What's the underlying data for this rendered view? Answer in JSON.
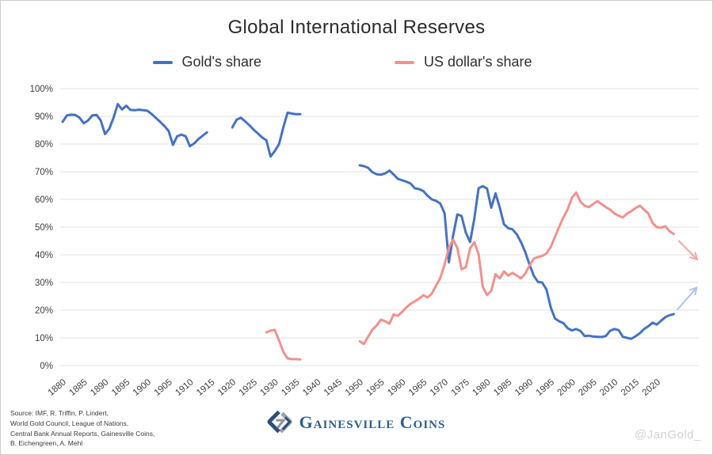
{
  "title": "Global International Reserves",
  "legend": [
    {
      "label": "Gold's share",
      "color": "#4472C4"
    },
    {
      "label": "US dollar's share",
      "color": "#F2908C"
    }
  ],
  "footer": {
    "source_lines": [
      "Source: IMF, R. Triffin, P. Lindert,",
      "World Gold Council, League of Nations,",
      "Central Bank Annual Reports, Gainesville Coins,",
      "B. Eichengreen, A. Mehl"
    ],
    "brand": "Gainesville Coins",
    "watermark": "@JanGold_"
  },
  "chart_data": {
    "type": "line",
    "title": "Global International Reserves",
    "xlabel": "",
    "ylabel": "",
    "xlim": [
      1880,
      2029.5
    ],
    "ylim": [
      0,
      100
    ],
    "grid": true,
    "legend_position": "top",
    "x_ticks": [
      1880,
      1885,
      1890,
      1895,
      1900,
      1905,
      1910,
      1915,
      1920,
      1925,
      1930,
      1935,
      1940,
      1945,
      1950,
      1955,
      1960,
      1965,
      1970,
      1975,
      1980,
      1985,
      1990,
      1995,
      2000,
      2005,
      2010,
      2015,
      2020
    ],
    "y_ticks": [
      0,
      10,
      20,
      30,
      40,
      50,
      60,
      70,
      80,
      90,
      100
    ],
    "y_tick_suffix": "%",
    "grid_color": "#e2e2e2",
    "series": [
      {
        "name": "Gold's share",
        "color": "#4472C4",
        "segments": [
          [
            [
              1880,
              88
            ],
            [
              1881,
              90.3
            ],
            [
              1882,
              90.6
            ],
            [
              1883,
              90.5
            ],
            [
              1884,
              89.5
            ],
            [
              1885,
              87.5
            ],
            [
              1886,
              88.5
            ],
            [
              1887,
              90.3
            ],
            [
              1888,
              90.5
            ],
            [
              1889,
              88.5
            ],
            [
              1890,
              83.6
            ],
            [
              1891,
              85.5
            ],
            [
              1892,
              89.5
            ],
            [
              1893,
              94.4
            ],
            [
              1894,
              92.5
            ],
            [
              1895,
              93.8
            ],
            [
              1896,
              92.3
            ],
            [
              1897,
              92.2
            ],
            [
              1898,
              92.4
            ],
            [
              1899,
              92.2
            ],
            [
              1900,
              92
            ],
            [
              1901,
              90.8
            ],
            [
              1902,
              89.4
            ],
            [
              1903,
              88
            ],
            [
              1904,
              86.5
            ],
            [
              1905,
              84.7
            ],
            [
              1906,
              79.7
            ],
            [
              1907,
              82.8
            ],
            [
              1908,
              83.4
            ],
            [
              1909,
              82.8
            ],
            [
              1910,
              79.2
            ],
            [
              1911,
              80.2
            ],
            [
              1912,
              81.8
            ],
            [
              1913,
              83
            ],
            [
              1914,
              84.2
            ]
          ],
          [
            [
              1920,
              86
            ],
            [
              1921,
              88.8
            ],
            [
              1922,
              89.5
            ],
            [
              1923,
              88.2
            ],
            [
              1924,
              86.8
            ],
            [
              1925,
              85.2
            ],
            [
              1926,
              83.8
            ],
            [
              1927,
              82.4
            ],
            [
              1928,
              81.4
            ],
            [
              1929,
              75.5
            ],
            [
              1930,
              77.5
            ],
            [
              1931,
              80
            ],
            [
              1932,
              86
            ],
            [
              1933,
              91.3
            ],
            [
              1934,
              91
            ],
            [
              1935,
              90.8
            ],
            [
              1936,
              90.8
            ]
          ],
          [
            [
              1950,
              72.3
            ],
            [
              1951,
              72
            ],
            [
              1952,
              71.4
            ],
            [
              1953,
              69.8
            ],
            [
              1954,
              69.1
            ],
            [
              1955,
              68.9
            ],
            [
              1956,
              69.4
            ],
            [
              1957,
              70.4
            ],
            [
              1958,
              69
            ],
            [
              1959,
              67.4
            ],
            [
              1960,
              66.9
            ],
            [
              1961,
              66.4
            ],
            [
              1962,
              65.7
            ],
            [
              1963,
              64
            ],
            [
              1964,
              63.7
            ],
            [
              1965,
              63
            ],
            [
              1966,
              61.3
            ],
            [
              1967,
              60
            ],
            [
              1968,
              59.5
            ],
            [
              1969,
              58.5
            ],
            [
              1970,
              55
            ],
            [
              1971,
              37.3
            ],
            [
              1972,
              46.9
            ],
            [
              1973,
              54.6
            ],
            [
              1974,
              54
            ],
            [
              1975,
              48
            ],
            [
              1976,
              44.6
            ],
            [
              1977,
              53
            ],
            [
              1978,
              64
            ],
            [
              1979,
              64.8
            ],
            [
              1980,
              63.9
            ],
            [
              1981,
              57
            ],
            [
              1982,
              62.2
            ],
            [
              1983,
              57
            ],
            [
              1984,
              51
            ],
            [
              1985,
              49.6
            ],
            [
              1986,
              49.2
            ],
            [
              1987,
              47.4
            ],
            [
              1988,
              44.6
            ],
            [
              1989,
              41
            ],
            [
              1990,
              36.5
            ],
            [
              1991,
              32.5
            ],
            [
              1992,
              30.2
            ],
            [
              1993,
              30
            ],
            [
              1994,
              27.5
            ],
            [
              1995,
              21
            ],
            [
              1996,
              17
            ],
            [
              1997,
              16
            ],
            [
              1998,
              15.3
            ],
            [
              1999,
              13.5
            ],
            [
              2000,
              12.7
            ],
            [
              2001,
              13.2
            ],
            [
              2002,
              12.5
            ],
            [
              2003,
              10.7
            ],
            [
              2004,
              10.8
            ],
            [
              2005,
              10.5
            ],
            [
              2006,
              10.4
            ],
            [
              2007,
              10.3
            ],
            [
              2008,
              10.7
            ],
            [
              2009,
              12.6
            ],
            [
              2010,
              13.2
            ],
            [
              2011,
              12.8
            ],
            [
              2012,
              10.4
            ],
            [
              2013,
              10
            ],
            [
              2014,
              9.7
            ],
            [
              2015,
              10.6
            ],
            [
              2016,
              11.7
            ],
            [
              2017,
              13.2
            ],
            [
              2018,
              14.2
            ],
            [
              2019,
              15.5
            ],
            [
              2020,
              14.8
            ],
            [
              2021,
              16.2
            ],
            [
              2022,
              17.5
            ],
            [
              2023,
              18.2
            ],
            [
              2024,
              18.6
            ]
          ]
        ]
      },
      {
        "name": "US dollar's share",
        "color": "#F2908C",
        "segments": [
          [
            [
              1928,
              12
            ],
            [
              1929,
              12.6
            ],
            [
              1930,
              12.9
            ],
            [
              1931,
              9
            ],
            [
              1932,
              5
            ],
            [
              1933,
              2.6
            ],
            [
              1934,
              2.3
            ],
            [
              1935,
              2.3
            ],
            [
              1936,
              2.2
            ]
          ],
          [
            [
              1950,
              8.8
            ],
            [
              1951,
              7.8
            ],
            [
              1952,
              10.5
            ],
            [
              1953,
              13
            ],
            [
              1954,
              14.5
            ],
            [
              1955,
              16.6
            ],
            [
              1956,
              16
            ],
            [
              1957,
              15.1
            ],
            [
              1958,
              18.5
            ],
            [
              1959,
              18
            ],
            [
              1960,
              19.4
            ],
            [
              1961,
              21
            ],
            [
              1962,
              22.3
            ],
            [
              1963,
              23.2
            ],
            [
              1964,
              24.2
            ],
            [
              1965,
              25.4
            ],
            [
              1966,
              24.6
            ],
            [
              1967,
              26
            ],
            [
              1968,
              28.9
            ],
            [
              1969,
              31.7
            ],
            [
              1970,
              36.5
            ],
            [
              1971,
              42.5
            ],
            [
              1972,
              45.5
            ],
            [
              1973,
              42.5
            ],
            [
              1974,
              34.8
            ],
            [
              1975,
              35.5
            ],
            [
              1976,
              42.3
            ],
            [
              1977,
              44.6
            ],
            [
              1978,
              40.3
            ],
            [
              1979,
              28.5
            ],
            [
              1980,
              25.5
            ],
            [
              1981,
              27
            ],
            [
              1982,
              33
            ],
            [
              1983,
              31.5
            ],
            [
              1984,
              34
            ],
            [
              1985,
              32.5
            ],
            [
              1986,
              33.5
            ],
            [
              1987,
              32.5
            ],
            [
              1988,
              31.5
            ],
            [
              1989,
              33.2
            ],
            [
              1990,
              36.1
            ],
            [
              1991,
              38.6
            ],
            [
              1992,
              39.2
            ],
            [
              1993,
              39.6
            ],
            [
              1994,
              40.5
            ],
            [
              1995,
              42.8
            ],
            [
              1996,
              46.5
            ],
            [
              1997,
              50.1
            ],
            [
              1998,
              53.5
            ],
            [
              1999,
              56.5
            ],
            [
              2000,
              60.6
            ],
            [
              2001,
              62.5
            ],
            [
              2002,
              59.2
            ],
            [
              2003,
              57.7
            ],
            [
              2004,
              57.2
            ],
            [
              2005,
              58.3
            ],
            [
              2006,
              59.4
            ],
            [
              2007,
              58.3
            ],
            [
              2008,
              57.2
            ],
            [
              2009,
              56.3
            ],
            [
              2010,
              54.9
            ],
            [
              2011,
              54.1
            ],
            [
              2012,
              53.5
            ],
            [
              2013,
              54.9
            ],
            [
              2014,
              55.8
            ],
            [
              2015,
              56.9
            ],
            [
              2016,
              57.7
            ],
            [
              2017,
              56.3
            ],
            [
              2018,
              54.9
            ],
            [
              2019,
              51.5
            ],
            [
              2020,
              50
            ],
            [
              2021,
              49.8
            ],
            [
              2022,
              50.3
            ],
            [
              2023,
              48.5
            ],
            [
              2024,
              47.5
            ]
          ]
        ]
      }
    ],
    "annotations": [
      {
        "type": "arrow",
        "label": "dollar-share-projected-down",
        "color": "#f3a6a3",
        "from": [
          2025.2,
          45
        ],
        "to": [
          2029.5,
          38.3
        ]
      },
      {
        "type": "arrow",
        "label": "gold-share-projected-up",
        "color": "#aac4ea",
        "from": [
          2024.9,
          20.3
        ],
        "to": [
          2029.4,
          28.2
        ]
      }
    ]
  }
}
